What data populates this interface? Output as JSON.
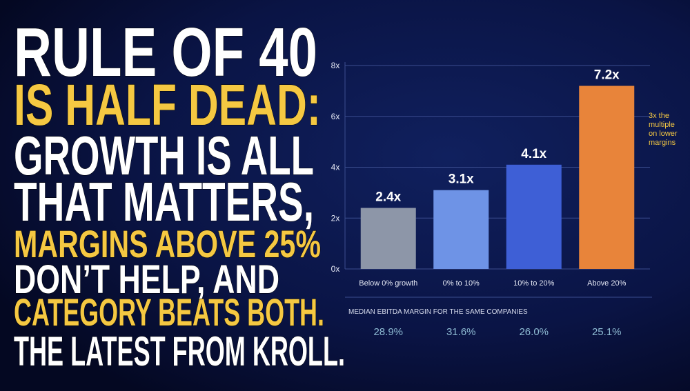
{
  "headline": [
    {
      "text": "RULE OF 40",
      "color": "#ffffff"
    },
    {
      "text": "IS HALF DEAD:",
      "color": "#f5c842"
    },
    {
      "text": "GROWTH IS ALL",
      "color": "#ffffff"
    },
    {
      "text": "THAT MATTERS,",
      "color": "#ffffff"
    },
    {
      "text": "MARGINS ABOVE 25%",
      "color": "#f5c842"
    },
    {
      "text": "DON’T HELP, AND",
      "color": "#ffffff"
    },
    {
      "text": "CATEGORY BEATS BOTH.",
      "color": "#f5c842"
    },
    {
      "text": "THE LATEST FROM KROLL.",
      "color": "#ffffff"
    }
  ],
  "chart_data": {
    "type": "bar",
    "categories": [
      "Below 0% growth",
      "0% to 10%",
      "10% to 20%",
      "Above 20%"
    ],
    "values": [
      2.4,
      3.1,
      4.1,
      7.2
    ],
    "value_labels": [
      "2.4x",
      "3.1x",
      "4.1x",
      "7.2x"
    ],
    "colors": [
      "#8d96a8",
      "#6e93e6",
      "#3e5fd6",
      "#e8843a"
    ],
    "ylim": [
      0,
      8
    ],
    "yticks": [
      {
        "value": 0,
        "label": "0x"
      },
      {
        "value": 2,
        "label": "2x"
      },
      {
        "value": 4,
        "label": "4x"
      },
      {
        "value": 6,
        "label": "6x"
      },
      {
        "value": 8,
        "label": "8x"
      }
    ],
    "grid": true,
    "annotation": [
      "3x the",
      "multiple",
      "on lower",
      "margins"
    ],
    "subtitle": "MEDIAN EBITDA MARGIN FOR THE SAME COMPANIES",
    "margins": {
      "values": [
        28.9,
        31.6,
        26.0,
        25.1
      ],
      "value_labels": [
        "28.9%",
        "31.6%",
        "26.0%",
        "25.1%"
      ]
    }
  }
}
